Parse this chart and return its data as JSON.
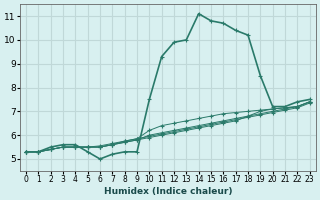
{
  "xlabel": "Humidex (Indice chaleur)",
  "ylabel": "",
  "bg_color": "#d8f0f0",
  "grid_color": "#c0d8d8",
  "line_color": "#2a7a6a",
  "xlim": [
    -0.5,
    23.5
  ],
  "ylim": [
    4.5,
    11.5
  ],
  "xticks": [
    0,
    1,
    2,
    3,
    4,
    5,
    6,
    7,
    8,
    9,
    10,
    11,
    12,
    13,
    14,
    15,
    16,
    17,
    18,
    19,
    20,
    21,
    22,
    23
  ],
  "yticks": [
    5,
    6,
    7,
    8,
    9,
    10,
    11
  ],
  "series": [
    {
      "x": [
        0,
        1,
        2,
        3,
        4,
        5,
        6,
        7,
        8,
        9,
        10,
        11,
        12,
        13,
        14,
        15,
        16,
        17,
        18,
        19,
        20,
        21,
        22,
        23
      ],
      "y": [
        5.3,
        5.3,
        5.5,
        5.6,
        5.6,
        5.3,
        5.0,
        5.2,
        5.3,
        5.3,
        7.5,
        9.3,
        9.9,
        10.0,
        11.1,
        10.8,
        10.7,
        10.4,
        10.2,
        8.5,
        7.2,
        7.2,
        7.4,
        7.5
      ],
      "lw": 1.2
    },
    {
      "x": [
        0,
        1,
        2,
        3,
        4,
        5,
        6,
        7,
        8,
        9,
        10,
        11,
        12,
        13,
        14,
        15,
        16,
        17,
        18,
        19,
        20,
        21,
        22,
        23
      ],
      "y": [
        5.3,
        5.3,
        5.4,
        5.5,
        5.5,
        5.5,
        5.5,
        5.6,
        5.7,
        5.8,
        5.9,
        6.0,
        6.1,
        6.2,
        6.3,
        6.4,
        6.5,
        6.6,
        6.8,
        6.9,
        7.0,
        7.1,
        7.2,
        7.4
      ],
      "lw": 0.7
    },
    {
      "x": [
        0,
        1,
        2,
        3,
        4,
        5,
        6,
        7,
        8,
        9,
        10,
        11,
        12,
        13,
        14,
        15,
        16,
        17,
        18,
        19,
        20,
        21,
        22,
        23
      ],
      "y": [
        5.3,
        5.3,
        5.4,
        5.5,
        5.5,
        5.5,
        5.55,
        5.65,
        5.75,
        5.85,
        5.95,
        6.05,
        6.15,
        6.25,
        6.35,
        6.45,
        6.55,
        6.65,
        6.75,
        6.85,
        6.95,
        7.05,
        7.15,
        7.35
      ],
      "lw": 0.7
    },
    {
      "x": [
        0,
        1,
        2,
        3,
        4,
        5,
        6,
        7,
        8,
        9,
        10,
        11,
        12,
        13,
        14,
        15,
        16,
        17,
        18,
        19,
        20,
        21,
        22,
        23
      ],
      "y": [
        5.3,
        5.3,
        5.4,
        5.5,
        5.5,
        5.5,
        5.5,
        5.6,
        5.75,
        5.85,
        6.2,
        6.4,
        6.5,
        6.6,
        6.7,
        6.8,
        6.9,
        6.95,
        7.0,
        7.05,
        7.1,
        7.15,
        7.2,
        7.4
      ],
      "lw": 0.7
    },
    {
      "x": [
        0,
        1,
        2,
        3,
        4,
        5,
        6,
        7,
        8,
        9,
        10,
        11,
        12,
        13,
        14,
        15,
        16,
        17,
        18,
        19,
        20,
        21,
        22,
        23
      ],
      "y": [
        5.3,
        5.3,
        5.4,
        5.5,
        5.5,
        5.5,
        5.5,
        5.6,
        5.7,
        5.8,
        6.0,
        6.1,
        6.2,
        6.3,
        6.4,
        6.5,
        6.6,
        6.7,
        6.8,
        7.0,
        7.1,
        7.15,
        7.2,
        7.4
      ],
      "lw": 0.7
    }
  ]
}
